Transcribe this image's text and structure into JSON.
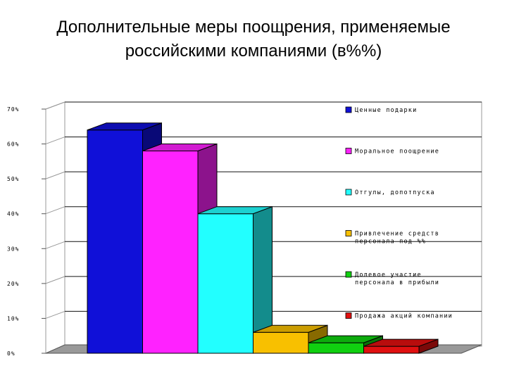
{
  "title": {
    "line1": "Дополнительные меры поощрения, применяемые",
    "line2": "российскими компаниями (в%%)"
  },
  "chart_data": {
    "type": "bar",
    "categories": [
      "Ценные подарки",
      "Моральное поощрение",
      "Отгулы, допотпуска",
      "Привлечение средств персонала под %%",
      "Долевое участие персонала в прибыли",
      "Продажа акций компании"
    ],
    "values": [
      64,
      58,
      40,
      6,
      3,
      2
    ],
    "colors": [
      "#1010d8",
      "#ff22ff",
      "#22ffff",
      "#f8c000",
      "#10d010",
      "#e01010"
    ],
    "yticks": [
      "0%",
      "10%",
      "20%",
      "30%",
      "40%",
      "50%",
      "60%",
      "70%"
    ],
    "ylim": [
      0,
      70
    ],
    "grid": true,
    "legend_position": "right",
    "three_d": true
  }
}
